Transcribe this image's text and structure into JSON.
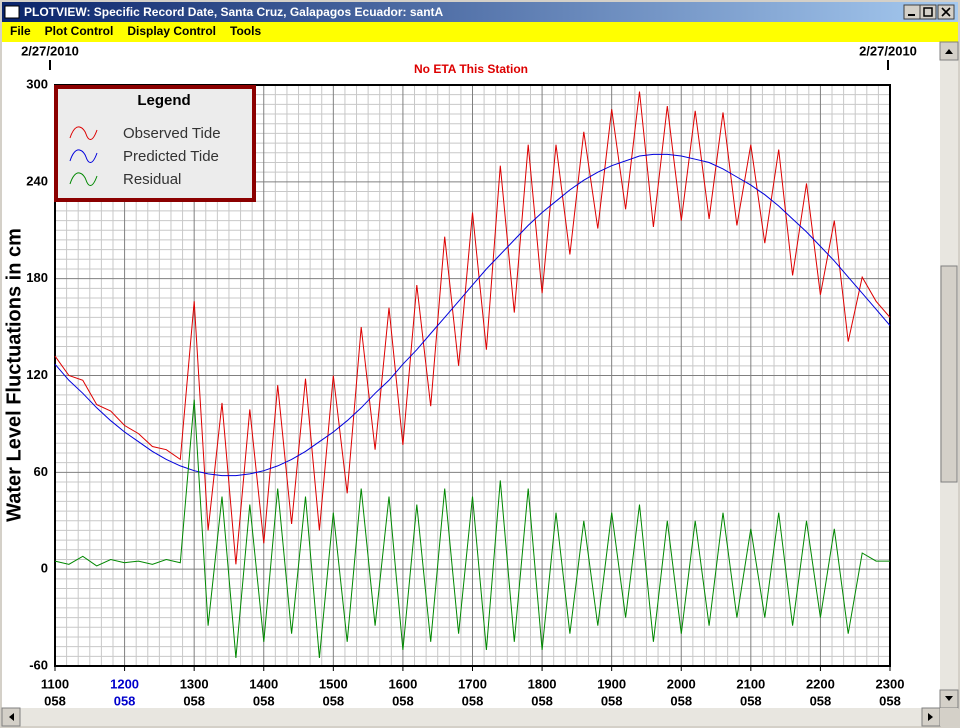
{
  "window": {
    "title": "PLOTVIEW: Specific Record Date, Santa Cruz, Galapagos Ecuador: santA",
    "menu": [
      "File",
      "Plot Control",
      "Display Control",
      "Tools"
    ]
  },
  "chart_data": {
    "type": "line",
    "date_left": "2/27/2010",
    "date_right": "2/27/2010",
    "annotation": "No ETA This Station",
    "y_label": "Water Level Fluctuations in cm",
    "legend_title": "Legend",
    "ylim": [
      -60,
      300
    ],
    "yticks": [
      -60,
      0,
      60,
      120,
      180,
      240,
      300
    ],
    "xlim": [
      11,
      23
    ],
    "xticks": [
      {
        "value": 11,
        "label": "1100"
      },
      {
        "value": 12,
        "label": "1200"
      },
      {
        "value": 13,
        "label": "1300"
      },
      {
        "value": 14,
        "label": "1400"
      },
      {
        "value": 15,
        "label": "1500"
      },
      {
        "value": 16,
        "label": "1600"
      },
      {
        "value": 17,
        "label": "1700"
      },
      {
        "value": 18,
        "label": "1800"
      },
      {
        "value": 19,
        "label": "1900"
      },
      {
        "value": 20,
        "label": "2000"
      },
      {
        "value": 21,
        "label": "2100"
      },
      {
        "value": 22,
        "label": "2200"
      },
      {
        "value": 23,
        "label": "2300"
      }
    ],
    "xtick_sublabels": [
      "058",
      "058",
      "058",
      "058",
      "058",
      "058",
      "058",
      "058",
      "058",
      "058",
      "058",
      "058",
      "058"
    ],
    "xtick_colors": [
      "#000000",
      "#0000cc",
      "#000000",
      "#000000",
      "#000000",
      "#000000",
      "#000000",
      "#000000",
      "#000000",
      "#000000",
      "#000000",
      "#000000",
      "#000000"
    ],
    "grid": true,
    "x": [
      11,
      11.2,
      11.4,
      11.6,
      11.8,
      12,
      12.2,
      12.4,
      12.6,
      12.8,
      13,
      13.2,
      13.4,
      13.6,
      13.8,
      14,
      14.2,
      14.4,
      14.6,
      14.8,
      15,
      15.2,
      15.4,
      15.6,
      15.8,
      16,
      16.2,
      16.4,
      16.6,
      16.8,
      17,
      17.2,
      17.4,
      17.6,
      17.8,
      18,
      18.2,
      18.4,
      18.6,
      18.8,
      19,
      19.2,
      19.4,
      19.6,
      19.8,
      20,
      20.2,
      20.4,
      20.6,
      20.8,
      21,
      21.2,
      21.4,
      21.6,
      21.8,
      22,
      22.2,
      22.4,
      22.6,
      22.8,
      23
    ],
    "series": [
      {
        "name": "Observed Tide",
        "color": "#dd0000",
        "values": [
          132,
          120,
          117,
          102,
          98,
          89,
          84,
          76,
          74,
          68,
          166,
          24,
          103,
          3,
          99,
          16,
          114,
          28,
          118,
          24,
          120,
          47,
          150,
          74,
          162,
          77,
          176,
          101,
          206,
          126,
          221,
          136,
          250,
          159,
          263,
          171,
          263,
          195,
          271,
          211,
          285,
          223,
          296,
          212,
          287,
          216,
          284,
          217,
          283,
          213,
          263,
          202,
          260,
          182,
          239,
          170,
          216,
          141,
          181,
          166,
          156
        ]
      },
      {
        "name": "Predicted Tide",
        "color": "#0000dd",
        "values": [
          127,
          117,
          109,
          100,
          92,
          85,
          79,
          73,
          68,
          64,
          61,
          59,
          58,
          58,
          59,
          61,
          64,
          68,
          73,
          79,
          85,
          92,
          100,
          109,
          117,
          127,
          136,
          146,
          156,
          166,
          176,
          186,
          195,
          204,
          213,
          221,
          228,
          235,
          241,
          246,
          250,
          253,
          256,
          257,
          257,
          256,
          254,
          252,
          248,
          243,
          238,
          232,
          225,
          217,
          209,
          200,
          191,
          181,
          171,
          161,
          151
        ]
      },
      {
        "name": "Residual",
        "color": "#008800",
        "values": [
          5,
          3,
          8,
          2,
          6,
          4,
          5,
          3,
          6,
          4,
          105,
          -35,
          45,
          -55,
          40,
          -45,
          50,
          -40,
          45,
          -55,
          35,
          -45,
          50,
          -35,
          45,
          -50,
          40,
          -45,
          50,
          -40,
          45,
          -50,
          55,
          -45,
          50,
          -50,
          35,
          -40,
          30,
          -35,
          35,
          -30,
          40,
          -45,
          30,
          -40,
          30,
          -35,
          35,
          -30,
          25,
          -30,
          35,
          -35,
          30,
          -30,
          25,
          -40,
          10,
          5,
          5
        ]
      }
    ]
  }
}
